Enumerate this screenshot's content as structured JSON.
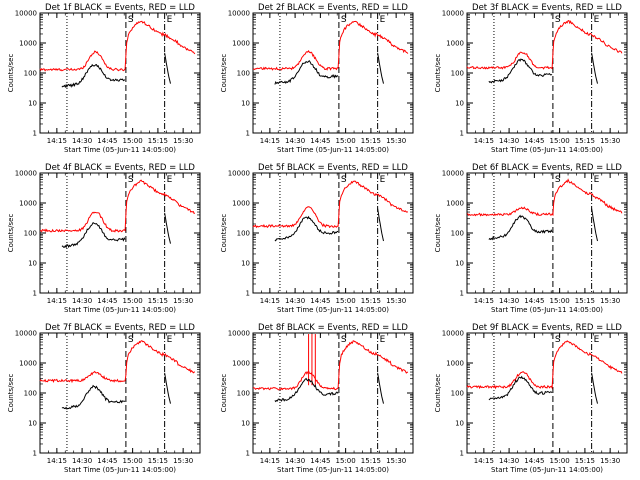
{
  "chart_data": {
    "type": "line",
    "y_scale": "log",
    "ylim": [
      1,
      10000
    ],
    "y_ticks": [
      1,
      10,
      100,
      1000,
      10000
    ],
    "y_tick_labels": [
      "1",
      "10",
      "100",
      "1000",
      "10000"
    ],
    "ylabel": "Counts/sec",
    "xlabel": "Start Time (05-Jun-11 14:05:00)",
    "x_tick_labels": [
      "14:15",
      "14:30",
      "14:45",
      "15:00",
      "15:15",
      "15:30"
    ],
    "x_tick_times": [
      "14:15",
      "14:30",
      "14:45",
      "15:00",
      "15:15",
      "15:30"
    ],
    "xlim": [
      "14:05",
      "15:40"
    ],
    "series_colors": {
      "events": "#000000",
      "lld": "#ff0000"
    },
    "markers": [
      {
        "label": "",
        "time": "14:21",
        "style": "dotted"
      },
      {
        "label": "S",
        "time": "14:56",
        "style": "dashed"
      },
      {
        "label": "E",
        "time": "15:19",
        "style": "dashdot"
      }
    ],
    "panels": [
      {
        "title": "Det 1f BLACK = Events, RED = LLD",
        "lld_base": 130,
        "evt_base": 35,
        "evt_hump": 2.9,
        "lld_hump": 500
      },
      {
        "title": "Det 2f BLACK = Events, RED = LLD",
        "lld_base": 140,
        "evt_base": 45,
        "evt_hump": 2.9,
        "lld_hump": 500
      },
      {
        "title": "Det 3f BLACK = Events, RED = LLD",
        "lld_base": 150,
        "evt_base": 50,
        "evt_hump": 2.9,
        "lld_hump": 500
      },
      {
        "title": "Det 4f BLACK = Events, RED = LLD",
        "lld_base": 120,
        "evt_base": 35,
        "evt_hump": 3.2,
        "lld_hump": 500
      },
      {
        "title": "Det 5f BLACK = Events, RED = LLD",
        "lld_base": 170,
        "evt_base": 60,
        "evt_hump": 3.0,
        "lld_hump": 700
      },
      {
        "title": "Det 6f BLACK = Events, RED = LLD",
        "lld_base": 420,
        "evt_base": 65,
        "evt_hump": 2.9,
        "lld_hump": 700
      },
      {
        "title": "Det 7f BLACK = Events, RED = LLD",
        "lld_base": 260,
        "evt_base": 30,
        "evt_hump": 2.9,
        "lld_hump": 500
      },
      {
        "title": "Det 8f BLACK = Events, RED = LLD",
        "lld_base": 140,
        "evt_base": 55,
        "evt_hump": 2.7,
        "lld_hump": 500,
        "spikes": [
          "14:38",
          "14:40",
          "14:42"
        ]
      },
      {
        "title": "Det 9f BLACK = Events, RED = LLD",
        "lld_base": 160,
        "evt_base": 60,
        "evt_hump": 2.9,
        "lld_hump": 500
      }
    ]
  }
}
